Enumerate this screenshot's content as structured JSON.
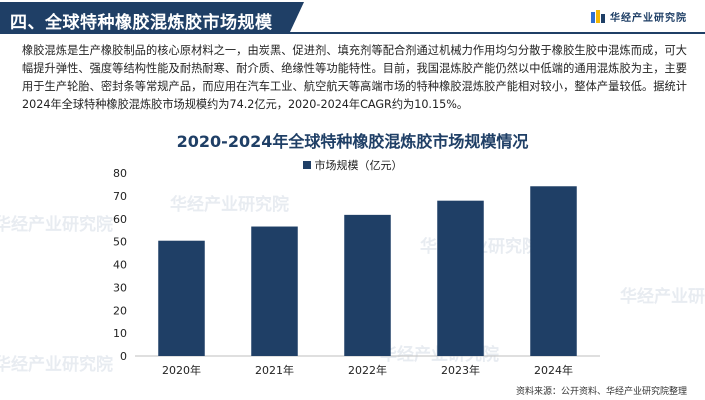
{
  "header": {
    "section_title": "四、全球特种橡胶混炼胶市场规模",
    "brand_name": "华经产业研究院",
    "brand_colors": [
      "#2e6fd1",
      "#f2b705",
      "#1f3f66"
    ]
  },
  "intro_text": "橡胶混炼是生产橡胶制品的核心原材料之一，由炭黑、促进剂、填充剂等配合剂通过机械力作用均匀分散于橡胶生胶中混炼而成，可大幅提升弹性、强度等结构性能及耐热耐寒、耐介质、绝缘性等功能特性。目前，我国混炼胶产能仍然以中低端的通用混炼胶为主，主要用于生产轮胎、密封条等常规产品，而应用在汽车工业、航空航天等高端市场的特种橡胶混炼胶产能相对较小，整体产量较低。据统计2024年全球特种橡胶混炼胶市场规模约为74.2亿元，2020-2024年CAGR约为10.15%。",
  "watermark_text": "华经产业研究院",
  "source_text": "资料来源：公开资料、华经产业研究院整理",
  "chart_data": {
    "type": "bar",
    "title": "2020-2024年全球特种橡胶混炼胶市场规模情况",
    "categories": [
      "2020年",
      "2021年",
      "2022年",
      "2023年",
      "2024年"
    ],
    "series": [
      {
        "name": "市场规模（亿元）",
        "values": [
          50.4,
          56.6,
          61.7,
          67.9,
          74.2
        ]
      }
    ],
    "ylim": [
      0,
      80
    ],
    "yticks": [
      0,
      10,
      20,
      30,
      40,
      50,
      60,
      70,
      80
    ],
    "legend_position": "top-center",
    "grid": false,
    "bar_color": "#1f3f66",
    "xlabel": "",
    "ylabel": ""
  }
}
